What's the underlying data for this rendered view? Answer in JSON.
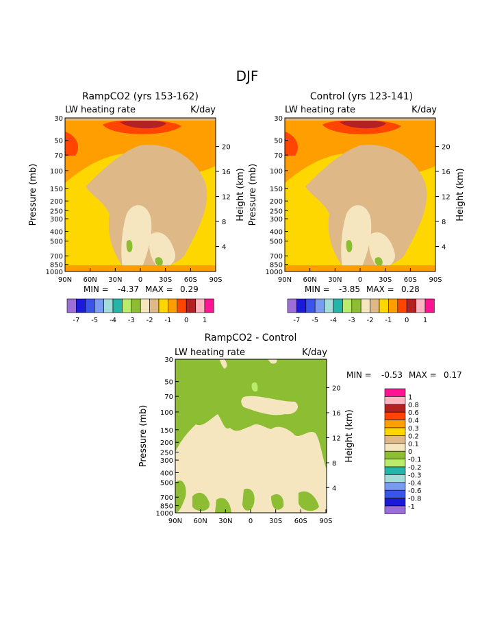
{
  "figure": {
    "title": "DJF"
  },
  "colors": {
    "fill": [
      "#9b6fd6",
      "#1a1ad8",
      "#3a55e8",
      "#7a9cf0",
      "#a3dcd8",
      "#25b5a8",
      "#b8ec6a",
      "#8cbd32",
      "#f5e6c0",
      "#deb887",
      "#ffd700",
      "#ff9e00",
      "#ff4500",
      "#b22222",
      "#ffb6c1",
      "#ff1493"
    ]
  },
  "chart_data": [
    {
      "type": "heatmap",
      "title": "RampCO2 (yrs 153-162)",
      "left_string": "LW heating rate",
      "right_string": "K/day",
      "xlabel": "",
      "ylabel": "Pressure (mb)",
      "y2label": "Height (km)",
      "x_ticks": [
        "90N",
        "60N",
        "30N",
        "0",
        "30S",
        "60S",
        "90S"
      ],
      "y_ticks": [
        "30",
        "50",
        "70",
        "100",
        "150",
        "200",
        "250",
        "300",
        "400",
        "500",
        "700",
        "850",
        "1000"
      ],
      "y2_ticks": [
        "20",
        "16",
        "12",
        "8",
        "4"
      ],
      "ylim": [
        1000,
        30
      ],
      "y_scale": "log",
      "min_label": "MIN =",
      "min_value": "-4.37",
      "max_label": "MAX =",
      "max_value": "0.29",
      "colorbar": {
        "orientation": "horizontal",
        "labels": [
          "-7",
          "-5",
          "-4",
          "-3",
          "-2",
          "-1",
          "0",
          "1"
        ]
      }
    },
    {
      "type": "heatmap",
      "title": "Control (yrs 123-141)",
      "left_string": "LW heating rate",
      "right_string": "K/day",
      "xlabel": "",
      "ylabel": "Pressure (mb)",
      "y2label": "Height (km)",
      "x_ticks": [
        "90N",
        "60N",
        "30N",
        "0",
        "30S",
        "60S",
        "90S"
      ],
      "y_ticks": [
        "30",
        "50",
        "70",
        "100",
        "150",
        "200",
        "250",
        "300",
        "400",
        "500",
        "700",
        "850",
        "1000"
      ],
      "y2_ticks": [
        "20",
        "16",
        "12",
        "8",
        "4"
      ],
      "ylim": [
        1000,
        30
      ],
      "y_scale": "log",
      "min_label": "MIN =",
      "min_value": "-3.85",
      "max_label": "MAX =",
      "max_value": "0.28",
      "colorbar": {
        "orientation": "horizontal",
        "labels": [
          "-7",
          "-5",
          "-4",
          "-3",
          "-2",
          "-1",
          "0",
          "1"
        ]
      }
    },
    {
      "type": "heatmap",
      "title": "RampCO2 - Control",
      "left_string": "LW heating rate",
      "right_string": "K/day",
      "xlabel": "",
      "ylabel": "Pressure (mb)",
      "y2label": "Height (km)",
      "x_ticks": [
        "90N",
        "60N",
        "30N",
        "0",
        "30S",
        "60S",
        "90S"
      ],
      "y_ticks": [
        "30",
        "50",
        "70",
        "100",
        "150",
        "200",
        "250",
        "300",
        "400",
        "500",
        "700",
        "850",
        "1000"
      ],
      "y2_ticks": [
        "20",
        "16",
        "12",
        "8",
        "4"
      ],
      "ylim": [
        1000,
        30
      ],
      "y_scale": "log",
      "min_label": "MIN =",
      "min_value": "-0.53",
      "max_label": "MAX =",
      "max_value": "0.17",
      "colorbar": {
        "orientation": "vertical",
        "labels": [
          "1",
          "0.8",
          "0.6",
          "0.4",
          "0.3",
          "0.2",
          "0.1",
          "0",
          "-0.1",
          "-0.2",
          "-0.3",
          "-0.4",
          "-0.6",
          "-0.8",
          "-1"
        ]
      }
    }
  ]
}
